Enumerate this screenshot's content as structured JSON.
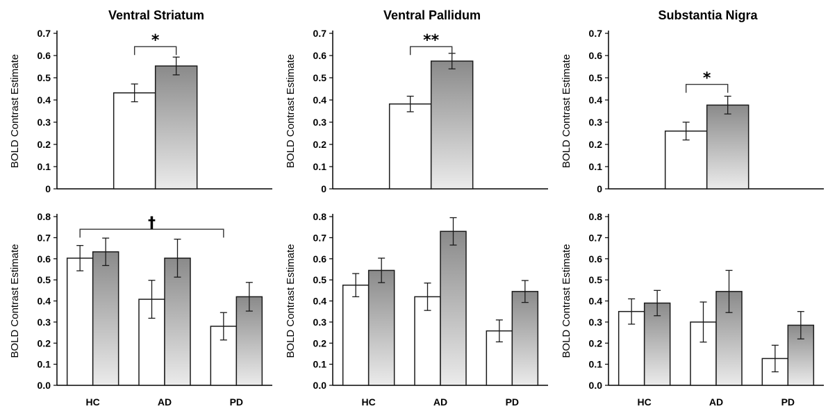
{
  "chart_data": [
    {
      "type": "bar",
      "title": "Ventral Striatum",
      "ylabel": "BOLD Contrast Estimate",
      "ylim": [
        0,
        0.7
      ],
      "yticks": [
        "0",
        "0.1",
        "0.2",
        "0.3",
        "0.4",
        "0.5",
        "0.6",
        "0.7"
      ],
      "categories": [
        ""
      ],
      "series": [
        {
          "values": [
            0.432
          ],
          "errors": [
            0.04
          ]
        },
        {
          "values": [
            0.553
          ],
          "errors": [
            0.04
          ]
        }
      ],
      "annotation": {
        "symbol": "*",
        "from": [
          0,
          0
        ],
        "to": [
          0,
          1
        ],
        "y": 0.64
      }
    },
    {
      "type": "bar",
      "title": "Ventral Pallidum",
      "ylabel": "BOLD Contrast Estimate",
      "ylim": [
        0,
        0.7
      ],
      "yticks": [
        "0",
        "0.1",
        "0.2",
        "0.3",
        "0.4",
        "0.5",
        "0.6",
        "0.7"
      ],
      "categories": [
        ""
      ],
      "series": [
        {
          "values": [
            0.382
          ],
          "errors": [
            0.035
          ]
        },
        {
          "values": [
            0.575
          ],
          "errors": [
            0.035
          ]
        }
      ],
      "annotation": {
        "symbol": "**",
        "from": [
          0,
          0
        ],
        "to": [
          0,
          1
        ],
        "y": 0.64
      }
    },
    {
      "type": "bar",
      "title": "Substantia Nigra",
      "ylabel": "BOLD Contrast Estimate",
      "ylim": [
        0,
        0.7
      ],
      "yticks": [
        "0",
        "0.1",
        "0.2",
        "0.3",
        "0.4",
        "0.5",
        "0.6",
        "0.7"
      ],
      "categories": [
        ""
      ],
      "series": [
        {
          "values": [
            0.26
          ],
          "errors": [
            0.04
          ]
        },
        {
          "values": [
            0.377
          ],
          "errors": [
            0.04
          ]
        }
      ],
      "annotation": {
        "symbol": "*",
        "from": [
          0,
          0
        ],
        "to": [
          0,
          1
        ],
        "y": 0.47
      }
    },
    {
      "type": "bar",
      "title": "",
      "ylabel": "BOLD Contrast Estimate",
      "ylim": [
        0,
        0.8
      ],
      "yticks": [
        "0.0",
        "0.1",
        "0.2",
        "0.3",
        "0.4",
        "0.5",
        "0.6",
        "0.7",
        "0.8"
      ],
      "categories": [
        "HC",
        "AD",
        "PD"
      ],
      "series": [
        {
          "values": [
            0.603,
            0.408,
            0.28
          ],
          "errors": [
            0.06,
            0.09,
            0.065
          ]
        },
        {
          "values": [
            0.633,
            0.603,
            0.42
          ],
          "errors": [
            0.065,
            0.09,
            0.068
          ]
        }
      ],
      "annotation": {
        "symbol": "†",
        "from": [
          0,
          0
        ],
        "to": [
          2,
          0
        ],
        "y": 0.74
      }
    },
    {
      "type": "bar",
      "title": "",
      "ylabel": "BOLD Contrast Estimate",
      "ylim": [
        0,
        0.8
      ],
      "yticks": [
        "0.0",
        "0.1",
        "0.2",
        "0.3",
        "0.4",
        "0.5",
        "0.6",
        "0.7",
        "0.8"
      ],
      "categories": [
        "HC",
        "AD",
        "PD"
      ],
      "series": [
        {
          "values": [
            0.475,
            0.42,
            0.258
          ],
          "errors": [
            0.055,
            0.065,
            0.052
          ]
        },
        {
          "values": [
            0.545,
            0.73,
            0.445
          ],
          "errors": [
            0.058,
            0.065,
            0.052
          ]
        }
      ],
      "annotation": null
    },
    {
      "type": "bar",
      "title": "",
      "ylabel": "BOLD Contrast Estimate",
      "ylim": [
        0,
        0.8
      ],
      "yticks": [
        "0.0",
        "0.1",
        "0.2",
        "0.3",
        "0.4",
        "0.5",
        "0.6",
        "0.7",
        "0.8"
      ],
      "categories": [
        "HC",
        "AD",
        "PD"
      ],
      "series": [
        {
          "values": [
            0.35,
            0.3,
            0.127
          ],
          "errors": [
            0.06,
            0.095,
            0.063
          ]
        },
        {
          "values": [
            0.39,
            0.445,
            0.285
          ],
          "errors": [
            0.06,
            0.1,
            0.065
          ]
        }
      ],
      "annotation": null
    }
  ],
  "colors": {
    "bar_outline": "#1a1a1a",
    "white_bar": "#ffffff",
    "gray_bar_top": "#8a8a8a",
    "gray_bar_bottom": "#ebebeb",
    "axis": "#000000"
  }
}
